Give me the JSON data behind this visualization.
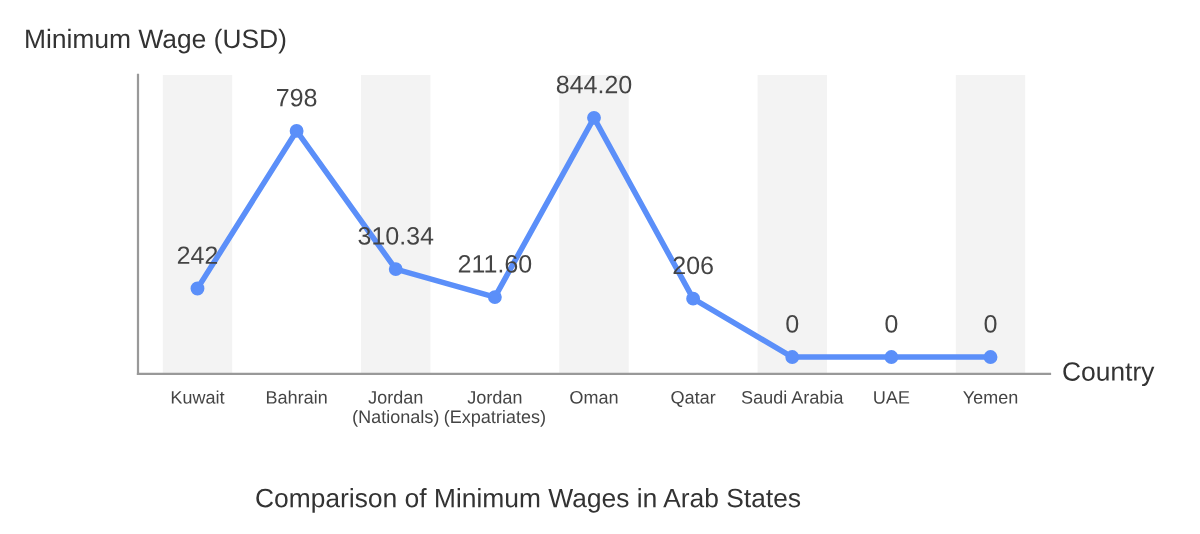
{
  "chart_data": {
    "type": "line",
    "title": "Comparison of Minimum Wages in Arab States",
    "xlabel": "Country",
    "ylabel": "Minimum Wage (USD)",
    "categories": [
      "Kuwait",
      "Bahrain",
      "Jordan\n(Nationals)",
      "Jordan\n(Expatriates)",
      "Oman",
      "Qatar",
      "Saudi Arabia",
      "UAE",
      "Yemen"
    ],
    "series": [
      {
        "color": "#5b8ff9",
        "values": [
          242,
          798,
          310.34,
          211.6,
          844.2,
          206,
          0,
          0,
          0
        ],
        "value_labels": [
          "242",
          "798",
          "310.34",
          "211.60",
          "844.20",
          "206",
          "0",
          "0",
          "0"
        ]
      }
    ],
    "marker": "circle",
    "line_style": "solid",
    "grid": false,
    "legend": false,
    "tick_labels": "x"
  }
}
